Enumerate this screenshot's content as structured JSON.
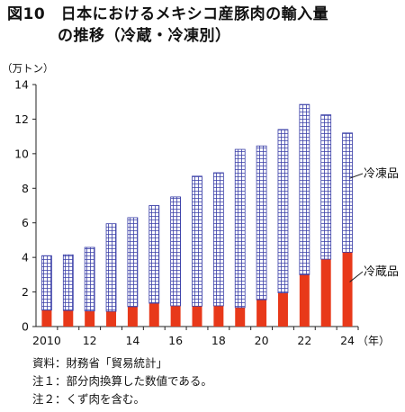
{
  "title": {
    "line1": "図10　日本におけるメキシコ産豚肉の輸入量",
    "line2": "の推移（冷蔵・冷凍別）"
  },
  "notes": [
    "資料：財務省「貿易統計」",
    "注１：部分肉換算した数値である。",
    "注２：くず肉を含む。"
  ],
  "colors": {
    "chilled": "#e8391a",
    "frozen_grid": "#3a3fa8",
    "frozen_bg": "#ffffff"
  },
  "chart_data": {
    "type": "bar",
    "stacked": true,
    "categories": [
      "2010",
      "",
      "12",
      "",
      "14",
      "",
      "16",
      "",
      "18",
      "",
      "20",
      "",
      "22",
      "",
      "24"
    ],
    "years": [
      2010,
      2011,
      2012,
      2013,
      2014,
      2015,
      2016,
      2017,
      2018,
      2019,
      2020,
      2021,
      2022,
      2023,
      2024
    ],
    "series": [
      {
        "name": "冷蔵品",
        "values": [
          0.95,
          0.93,
          0.9,
          0.88,
          1.15,
          1.35,
          1.2,
          1.18,
          1.2,
          1.1,
          1.55,
          1.95,
          3.0,
          3.9,
          4.3
        ]
      },
      {
        "name": "冷凍品",
        "values": [
          3.15,
          3.22,
          3.68,
          5.07,
          5.15,
          5.65,
          6.3,
          7.52,
          7.7,
          9.15,
          8.9,
          9.45,
          9.85,
          8.35,
          6.9
        ]
      }
    ],
    "yunit": "（万トン）",
    "xunit": "（年）",
    "ylim": [
      0,
      14
    ],
    "yticks": [
      0,
      2,
      4,
      6,
      8,
      10,
      12,
      14
    ],
    "grid": false,
    "legend": "right, labels beside bars"
  }
}
